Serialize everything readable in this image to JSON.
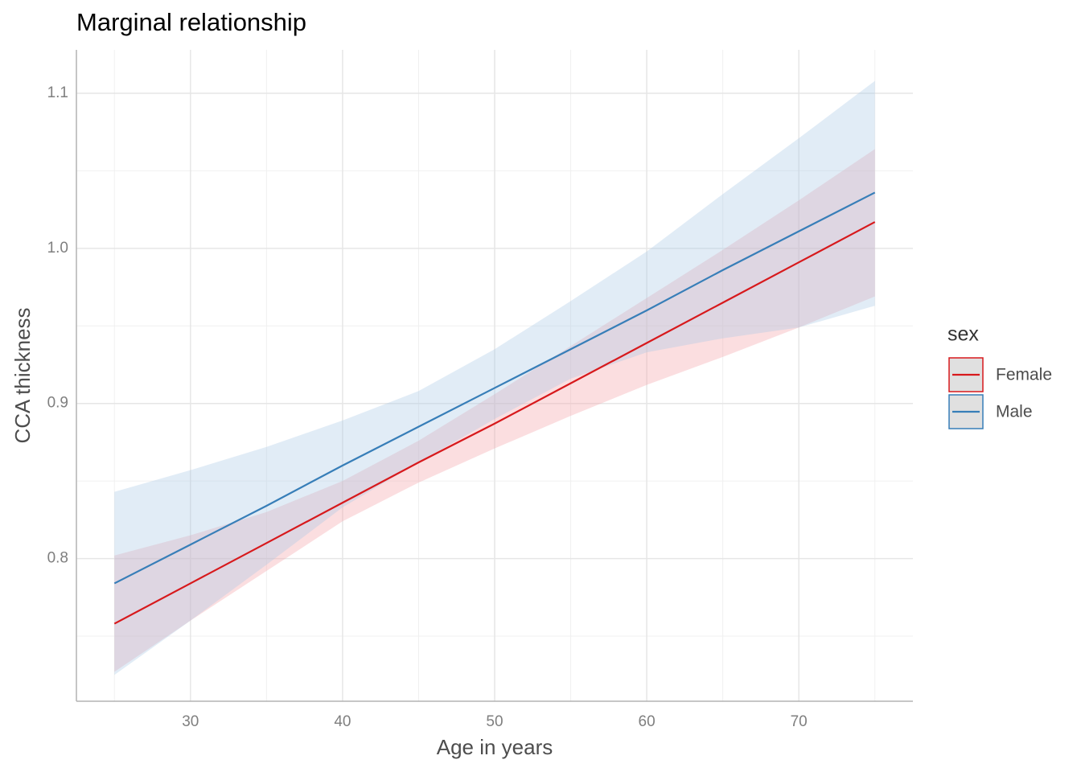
{
  "chart_data": {
    "type": "line",
    "title": "Marginal relationship",
    "x_label": "Age in years",
    "y_label": "CCA thickness",
    "legend_title": "sex",
    "legend": "right",
    "grid": true,
    "x": [
      25,
      30,
      35,
      40,
      45,
      50,
      55,
      60,
      65,
      70,
      75
    ],
    "xlim": [
      22.5,
      77.5
    ],
    "xticks": [
      30,
      40,
      50,
      60,
      70
    ],
    "xminor": [
      25,
      35,
      45,
      55,
      65,
      75
    ],
    "ylim": [
      0.708,
      1.128
    ],
    "yticks": [
      0.8,
      0.9,
      {
        "value": 1.0,
        "label": "1.0"
      },
      1.1
    ],
    "yminor": [
      0.75,
      0.85,
      0.95,
      1.05
    ],
    "series": [
      {
        "name": "Female",
        "color": "#d7191c",
        "ribbon_color": "#f4a0a6",
        "values": [
          0.758,
          0.784,
          0.81,
          0.836,
          0.862,
          0.887,
          0.913,
          0.939,
          0.965,
          0.991,
          1.017
        ],
        "lower": [
          0.727,
          0.76,
          0.792,
          0.824,
          0.849,
          0.871,
          0.892,
          0.912,
          0.93,
          0.949,
          0.969
        ],
        "upper": [
          0.802,
          0.815,
          0.83,
          0.85,
          0.876,
          0.906,
          0.937,
          0.968,
          0.999,
          1.031,
          1.064
        ]
      },
      {
        "name": "Male",
        "color": "#377eb8",
        "ribbon_color": "#a9c8e6",
        "values": [
          0.784,
          0.809,
          0.834,
          0.86,
          0.885,
          0.91,
          0.935,
          0.96,
          0.986,
          1.011,
          1.036
        ],
        "lower": [
          0.725,
          0.76,
          0.796,
          0.833,
          0.862,
          0.89,
          0.916,
          0.933,
          0.942,
          0.949,
          0.963
        ],
        "upper": [
          0.843,
          0.857,
          0.872,
          0.889,
          0.908,
          0.935,
          0.966,
          0.998,
          1.035,
          1.071,
          1.108
        ]
      }
    ]
  }
}
